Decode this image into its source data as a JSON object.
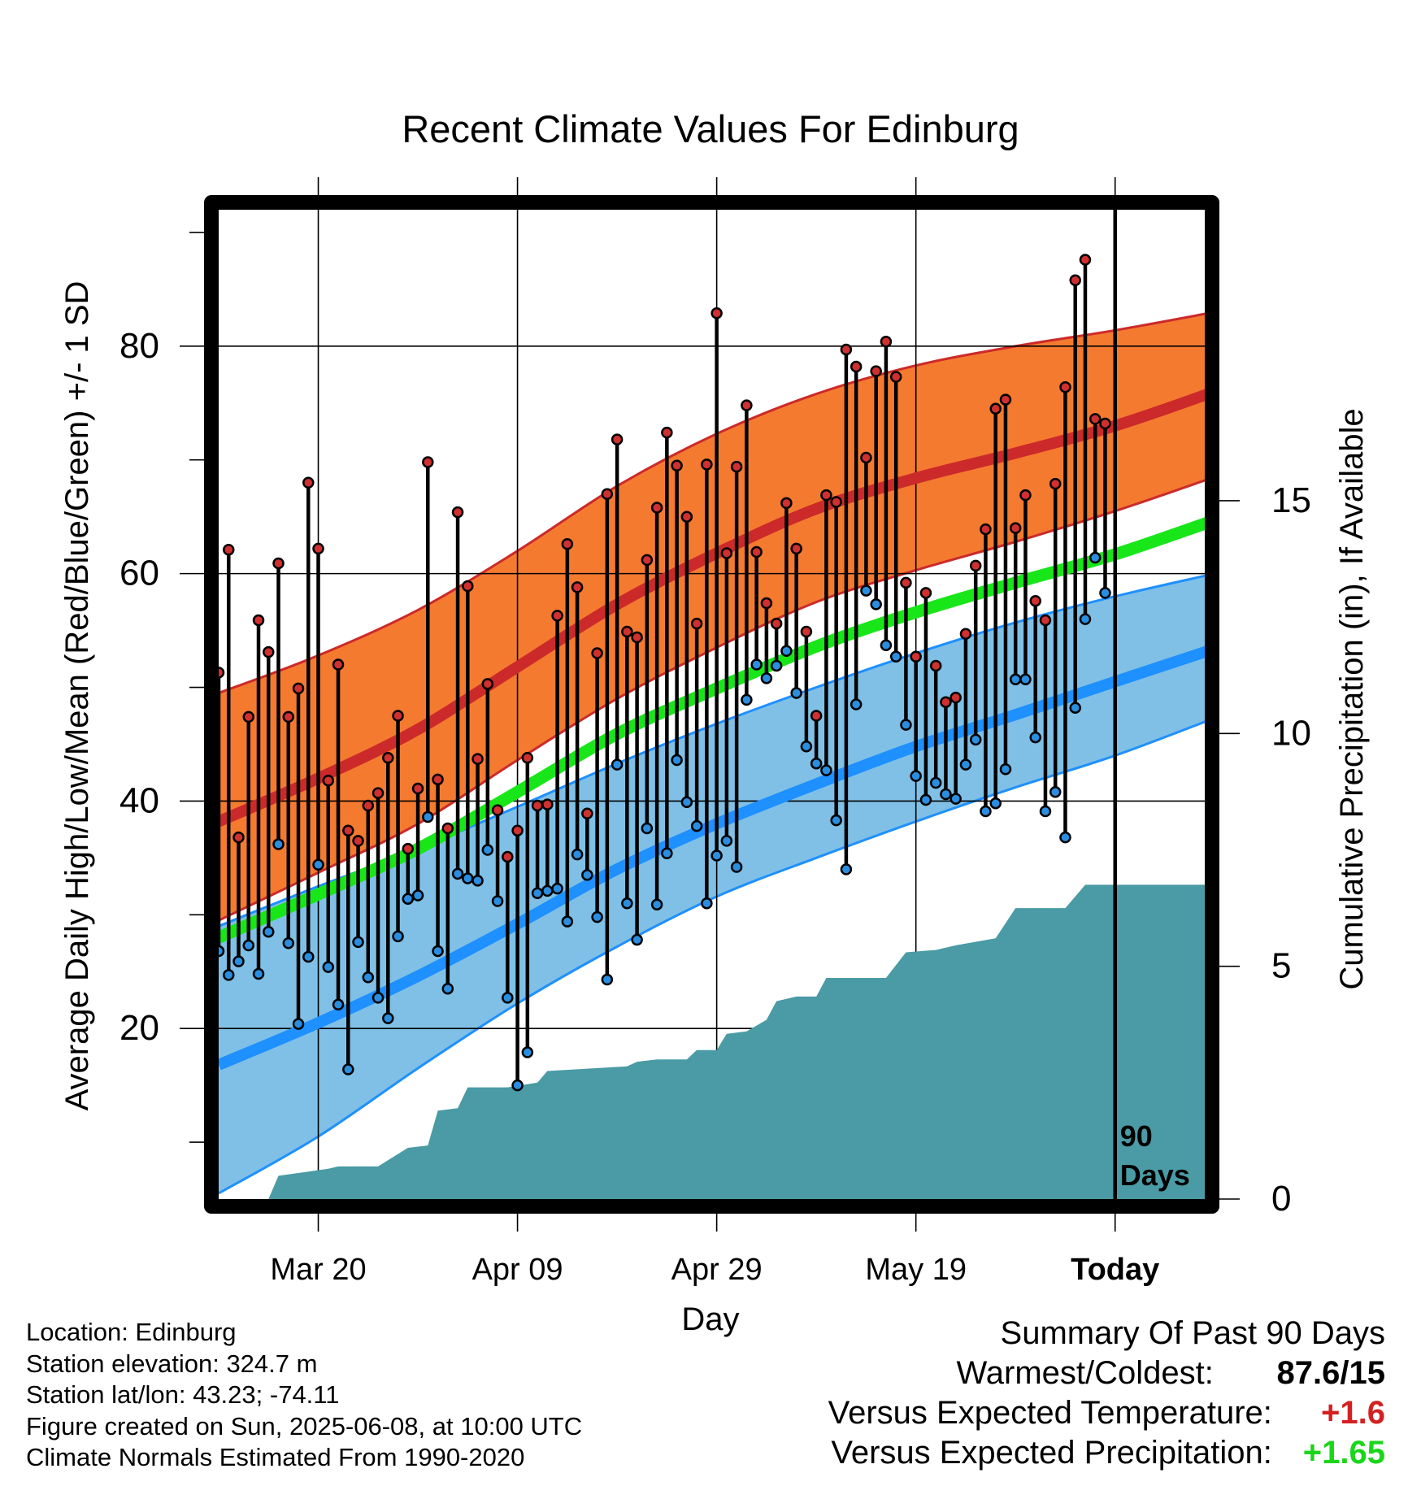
{
  "chart_data": {
    "type": "line",
    "title": "Recent Climate Values For Edinburg",
    "xlabel": "Day",
    "ylabel": "Average Daily High/Low/Mean (Red/Blue/Green) +/- 1 SD",
    "y2label": "Cumulative Precipitation (in), If Available",
    "ylim": [
      5,
      92
    ],
    "y2lim": [
      0,
      21.25
    ],
    "xlim": [
      "2025-03-10",
      "2025-06-17"
    ],
    "x_ticks": [
      {
        "date": "2025-03-20",
        "label": "Mar 20"
      },
      {
        "date": "2025-04-09",
        "label": "Apr 09"
      },
      {
        "date": "2025-04-29",
        "label": "Apr 29"
      },
      {
        "date": "2025-05-19",
        "label": "May 19"
      },
      {
        "date": "2025-06-08",
        "label": "Today"
      }
    ],
    "y_ticks": [
      20,
      40,
      60,
      80
    ],
    "y2_ticks": [
      0,
      5,
      10,
      15
    ],
    "grid": true,
    "today_marker": {
      "date": "2025-06-08",
      "label_line1": "90",
      "label_line2": "Days"
    },
    "colors": {
      "high_mean": "#cc2a2a",
      "high_band": "#f47a30",
      "low_mean": "#1e90ff",
      "low_band": "#80c0e6",
      "avg_mean": "#19e619",
      "precip": "#4a9ba5",
      "high_dot": "#d03030",
      "low_dot": "#2a8ee0",
      "positive_temp": "#d42020",
      "positive_precip": "#19d619"
    },
    "normals": {
      "dates": [
        "2025-03-10",
        "2025-03-20",
        "2025-03-30",
        "2025-04-09",
        "2025-04-19",
        "2025-04-29",
        "2025-05-09",
        "2025-05-19",
        "2025-05-29",
        "2025-06-08",
        "2025-06-18"
      ],
      "high_upper": [
        49.5,
        52.8,
        56.8,
        62.0,
        67.7,
        72.3,
        75.8,
        78.3,
        80.0,
        81.4,
        83.0
      ],
      "high_mean": [
        38.2,
        42.0,
        46.3,
        51.8,
        57.3,
        61.8,
        65.7,
        68.4,
        70.6,
        73.0,
        76.0
      ],
      "high_lower": [
        29.5,
        33.7,
        38.0,
        43.6,
        49.0,
        53.5,
        57.5,
        60.3,
        62.8,
        65.5,
        68.5
      ],
      "avg_mean": [
        28.0,
        31.8,
        35.8,
        40.8,
        45.9,
        49.9,
        53.6,
        56.6,
        59.2,
        61.7,
        64.7
      ],
      "low_upper": [
        29.0,
        32.5,
        35.8,
        39.5,
        43.3,
        46.8,
        50.0,
        53.0,
        55.7,
        58.0,
        60.0
      ],
      "low_mean": [
        16.8,
        20.5,
        24.6,
        29.2,
        34.0,
        38.0,
        41.5,
        44.8,
        47.6,
        50.5,
        53.4
      ],
      "low_lower": [
        5.5,
        10.5,
        16.5,
        22.2,
        27.2,
        31.6,
        35.0,
        38.2,
        41.2,
        44.0,
        47.3
      ]
    },
    "daily": {
      "start_date": "2025-03-10",
      "high": [
        51.3,
        62.1,
        36.8,
        47.4,
        55.9,
        53.1,
        60.9,
        47.4,
        49.9,
        68.0,
        62.2,
        41.8,
        52.0,
        37.4,
        36.5,
        39.6,
        40.7,
        43.8,
        47.5,
        35.8,
        41.1,
        69.8,
        41.9,
        37.6,
        65.4,
        58.9,
        43.7,
        50.3,
        39.2,
        35.1,
        37.4,
        43.8,
        39.6,
        39.7,
        56.3,
        62.6,
        58.8,
        38.9,
        53.0,
        67.0,
        71.8,
        54.9,
        54.4,
        61.2,
        65.8,
        72.4,
        69.5,
        65.0,
        55.6,
        69.6,
        82.9,
        61.8,
        69.4,
        74.8,
        61.9,
        57.4,
        55.6,
        66.2,
        62.2,
        54.9,
        47.5,
        66.9,
        66.3,
        79.7,
        78.2,
        70.2,
        77.8,
        80.4,
        77.3,
        59.2,
        52.7,
        58.3,
        51.9,
        48.7,
        49.1,
        54.7,
        60.7,
        63.9,
        74.5,
        75.3,
        64.0,
        66.9,
        57.6,
        55.9,
        67.9,
        76.4,
        85.8,
        87.6,
        73.6,
        73.2
      ],
      "low": [
        26.8,
        24.7,
        25.9,
        27.3,
        24.8,
        28.5,
        36.2,
        27.5,
        20.4,
        26.3,
        34.4,
        25.4,
        22.1,
        16.4,
        27.6,
        24.5,
        22.7,
        20.9,
        28.1,
        31.4,
        31.7,
        38.6,
        26.8,
        23.5,
        33.6,
        33.2,
        33.0,
        35.7,
        31.2,
        22.7,
        15.0,
        17.9,
        31.9,
        32.1,
        32.3,
        29.4,
        35.3,
        33.5,
        29.8,
        24.3,
        43.2,
        31.0,
        27.8,
        37.6,
        30.9,
        35.4,
        43.6,
        39.9,
        37.8,
        31.0,
        35.2,
        36.5,
        34.2,
        48.9,
        52.0,
        50.8,
        51.9,
        53.2,
        49.5,
        44.8,
        43.3,
        42.7,
        38.3,
        34.0,
        48.5,
        58.5,
        57.3,
        53.7,
        52.7,
        46.7,
        42.2,
        40.1,
        41.6,
        40.6,
        40.2,
        43.2,
        45.4,
        39.1,
        39.8,
        42.8,
        50.7,
        50.7,
        45.6,
        39.1,
        40.8,
        36.8,
        48.2,
        56.0,
        61.4,
        58.3
      ]
    },
    "precip_cumulative": {
      "dates": [
        "2025-03-10",
        "2025-03-15",
        "2025-03-16",
        "2025-03-21",
        "2025-03-22",
        "2025-03-26",
        "2025-03-29",
        "2025-03-31",
        "2025-04-01",
        "2025-04-03",
        "2025-04-04",
        "2025-04-08",
        "2025-04-11",
        "2025-04-12",
        "2025-04-20",
        "2025-04-21",
        "2025-04-23",
        "2025-04-26",
        "2025-04-27",
        "2025-04-29",
        "2025-04-30",
        "2025-05-02",
        "2025-05-04",
        "2025-05-05",
        "2025-05-07",
        "2025-05-09",
        "2025-05-10",
        "2025-05-16",
        "2025-05-18",
        "2025-05-21",
        "2025-05-23",
        "2025-05-27",
        "2025-05-29",
        "2025-06-03",
        "2025-06-05",
        "2025-06-06",
        "2025-06-17"
      ],
      "values": [
        0.0,
        0.0,
        0.5,
        0.65,
        0.7,
        0.7,
        1.1,
        1.15,
        1.9,
        1.95,
        2.4,
        2.4,
        2.5,
        2.75,
        2.85,
        2.95,
        3.0,
        3.0,
        3.2,
        3.2,
        3.55,
        3.6,
        3.85,
        4.25,
        4.35,
        4.35,
        4.75,
        4.75,
        5.3,
        5.35,
        5.45,
        5.6,
        6.25,
        6.25,
        6.75,
        6.75,
        6.75
      ]
    }
  },
  "footer": {
    "location": "Location: Edinburg",
    "elevation": "Station elevation: 324.7 m",
    "latlon": "Station lat/lon: 43.23; -74.11",
    "created": "Figure created on Sun, 2025-06-08, at 10:00 UTC",
    "normals_note": "Climate Normals Estimated From 1990-2020"
  },
  "summary": {
    "title": "Summary Of Past 90 Days",
    "warm_cold_label": "Warmest/Coldest:",
    "warm_cold_value": "87.6/15",
    "temp_label": "Versus Expected Temperature:",
    "temp_value": "+1.6",
    "precip_label": "Versus Expected Precipitation:",
    "precip_value": "+1.65"
  }
}
